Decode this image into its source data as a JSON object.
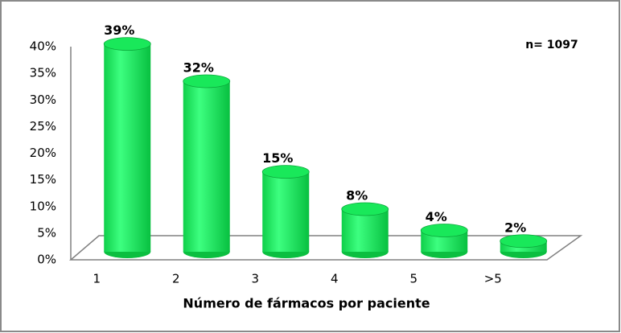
{
  "chart_data": {
    "type": "bar",
    "color": "#19e85a",
    "annotation": "n= 1097",
    "x_label": "Número de fármacos por paciente",
    "categories": [
      "1",
      "2",
      "3",
      "4",
      "5",
      ">5"
    ],
    "values": [
      39,
      32,
      15,
      8,
      4,
      2
    ],
    "value_labels": [
      "39%",
      "32%",
      "15%",
      "8%",
      "4%",
      "2%"
    ],
    "ylim": [
      0,
      40
    ],
    "yticks": [
      {
        "value": 0,
        "label": "0%"
      },
      {
        "value": 5,
        "label": "5%"
      },
      {
        "value": 10,
        "label": "10%"
      },
      {
        "value": 15,
        "label": "15%"
      },
      {
        "value": 20,
        "label": "20%"
      },
      {
        "value": 25,
        "label": "25%"
      },
      {
        "value": 30,
        "label": "30%"
      },
      {
        "value": 35,
        "label": "35%"
      },
      {
        "value": 40,
        "label": "40%"
      }
    ],
    "grid": false
  }
}
